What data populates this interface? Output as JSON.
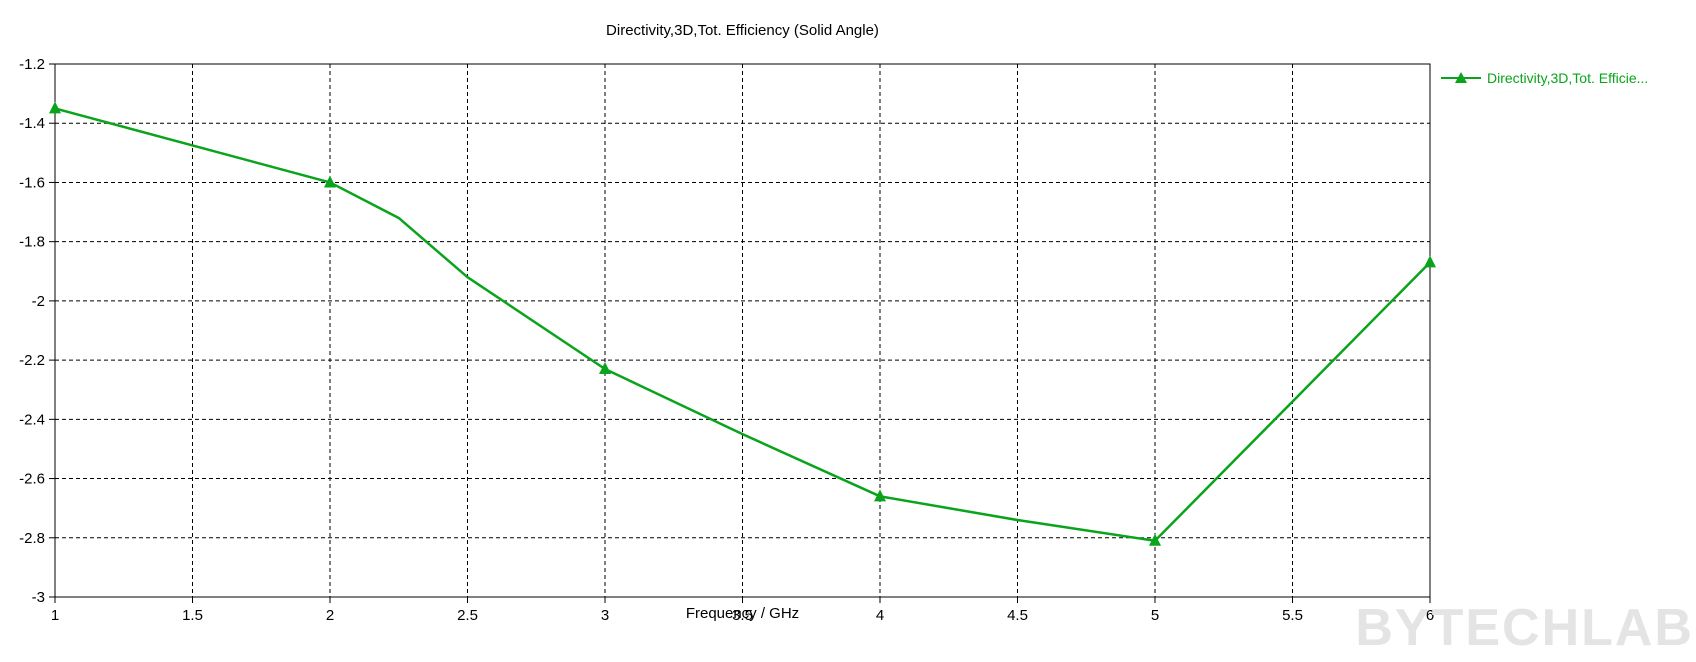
{
  "title": "Directivity,3D,Tot. Efficiency (Solid Angle)",
  "x_axis_label": "Frequency / GHz",
  "legend": {
    "label": "Directivity,3D,Tot. Efficie..."
  },
  "watermark": "BYTECHLAB",
  "colors": {
    "series": "#0aa41c",
    "grid": "#000000",
    "axis": "#000000",
    "text": "#000000",
    "watermark": "#e4e4e4",
    "background": "#ffffff"
  },
  "chart_data": {
    "type": "line",
    "title": "Directivity,3D,Tot. Efficiency (Solid Angle)",
    "xlabel": "Frequency / GHz",
    "ylabel": "",
    "xlim": [
      1,
      6
    ],
    "ylim": [
      -3,
      -1.2
    ],
    "grid": "dashed",
    "legend_position": "outside-top-right",
    "x_tick_values": [
      1,
      1.5,
      2,
      2.5,
      3,
      3.5,
      4,
      4.5,
      5,
      5.5,
      6
    ],
    "x_tick_labels": [
      "1",
      "1.5",
      "2",
      "2.5",
      "3",
      "3.5",
      "4",
      "4.5",
      "5",
      "5.5",
      "6"
    ],
    "y_tick_values": [
      -1.2,
      -1.4,
      -1.6,
      -1.8,
      -2,
      -2.2,
      -2.4,
      -2.6,
      -2.8,
      -3
    ],
    "y_tick_labels": [
      "-1.2",
      "-1.4",
      "-1.6",
      "-1.8",
      "-2",
      "-2.2",
      "-2.4",
      "-2.6",
      "-2.8",
      "-3"
    ],
    "series": [
      {
        "name": "Directivity,3D,Tot. Efficiency (Solid Angle)",
        "color": "#0aa41c",
        "marker": "triangle-up",
        "markers": {
          "x": [
            1,
            2,
            3,
            4,
            5,
            6
          ],
          "y": [
            -1.35,
            -1.6,
            -2.23,
            -2.66,
            -2.81,
            -1.87
          ]
        },
        "line": {
          "x": [
            1,
            2,
            2.25,
            2.5,
            3,
            3.5,
            4,
            4.5,
            5,
            5.5,
            6
          ],
          "y": [
            -1.35,
            -1.6,
            -1.72,
            -1.92,
            -2.23,
            -2.45,
            -2.66,
            -2.74,
            -2.81,
            -2.34,
            -1.87
          ]
        }
      }
    ]
  }
}
